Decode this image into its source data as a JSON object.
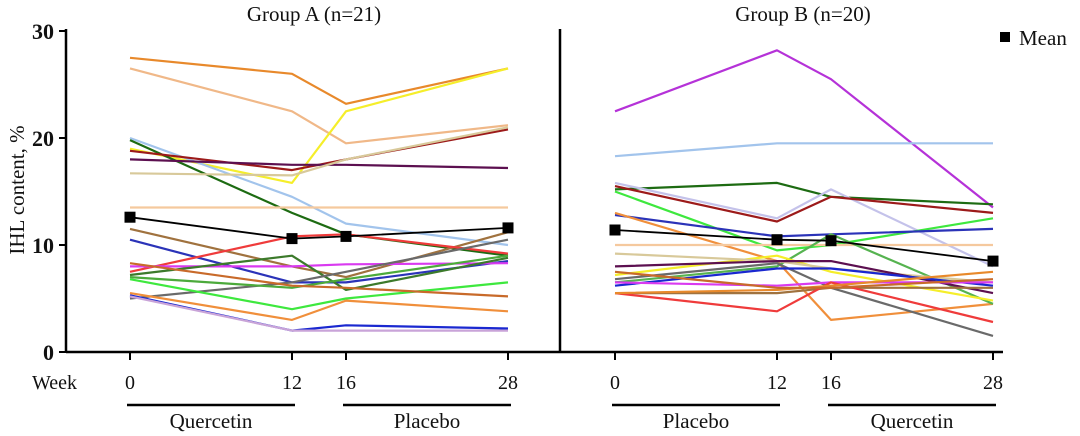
{
  "chart_data": {
    "type": "line",
    "ylabel": "IHL content,  %",
    "ylim": [
      0,
      30
    ],
    "yticks": [
      0,
      10,
      20,
      30
    ],
    "x_axis_label": "Week",
    "x": [
      0,
      12,
      16,
      28
    ],
    "xtick_labels": [
      "0",
      "12",
      "16",
      "28"
    ],
    "legend": {
      "label": "Mean",
      "position": "top-right"
    },
    "panels": [
      {
        "title": "Group A (n=21)",
        "phases": [
          {
            "label": "Quercetin",
            "from": 0,
            "to": 12
          },
          {
            "label": "Placebo",
            "from": 16,
            "to": 28
          }
        ],
        "mean": [
          12.6,
          10.6,
          10.8,
          11.6
        ],
        "series": [
          {
            "color": "#e8892b",
            "values": [
              27.5,
              26.0,
              23.2,
              26.5
            ]
          },
          {
            "color": "#f0b888",
            "values": [
              26.5,
              22.5,
              19.5,
              21.2
            ]
          },
          {
            "color": "#f5ee2a",
            "values": [
              19.0,
              15.8,
              22.5,
              26.5
            ]
          },
          {
            "color": "#a2c4ec",
            "values": [
              20.0,
              14.5,
              12.0,
              10.0
            ]
          },
          {
            "color": "#1d6b12",
            "values": [
              19.8,
              13.0,
              11.0,
              9.0
            ]
          },
          {
            "color": "#9c1a1a",
            "values": [
              18.8,
              17.0,
              18.0,
              20.8
            ]
          },
          {
            "color": "#5c1050",
            "values": [
              18.0,
              17.5,
              17.5,
              17.2
            ]
          },
          {
            "color": "#d8c99a",
            "values": [
              16.7,
              16.5,
              18.0,
              21.0
            ]
          },
          {
            "color": "#f5c99e",
            "values": [
              13.5,
              13.5,
              13.5,
              13.5
            ]
          },
          {
            "color": "#a0723e",
            "values": [
              11.5,
              8.0,
              7.0,
              11.2
            ]
          },
          {
            "color": "#2b33b8",
            "values": [
              10.5,
              6.5,
              6.5,
              8.5
            ]
          },
          {
            "color": "#ef3b3b",
            "values": [
              7.5,
              10.8,
              11.0,
              9.2
            ]
          },
          {
            "color": "#d93af0",
            "values": [
              8.0,
              8.0,
              8.2,
              8.3
            ]
          },
          {
            "color": "#3c7a2b",
            "values": [
              7.2,
              9.0,
              5.8,
              8.8
            ]
          },
          {
            "color": "#6a6a6a",
            "values": [
              5.0,
              6.5,
              7.5,
              10.5
            ]
          },
          {
            "color": "#4caa3b",
            "values": [
              7.0,
              6.0,
              6.8,
              9.0
            ]
          },
          {
            "color": "#3ee83e",
            "values": [
              6.8,
              4.0,
              5.0,
              6.5
            ]
          },
          {
            "color": "#c86a2a",
            "values": [
              8.3,
              6.2,
              6.0,
              5.2
            ]
          },
          {
            "color": "#f08f3b",
            "values": [
              5.5,
              3.0,
              4.8,
              3.8
            ]
          },
          {
            "color": "#1a28d0",
            "values": [
              5.3,
              2.0,
              2.5,
              2.2
            ]
          },
          {
            "color": "#c9a4d8",
            "values": [
              5.2,
              2.0,
              2.0,
              2.0
            ]
          }
        ]
      },
      {
        "title": "Group B (n=20)",
        "phases": [
          {
            "label": "Placebo",
            "from": 0,
            "to": 12
          },
          {
            "label": "Quercetin",
            "from": 16,
            "to": 28
          }
        ],
        "mean": [
          11.4,
          10.5,
          10.4,
          8.5
        ],
        "series": [
          {
            "color": "#b532d8",
            "values": [
              22.5,
              28.2,
              25.5,
              13.5
            ]
          },
          {
            "color": "#a2c4ec",
            "values": [
              18.3,
              19.5,
              19.5,
              19.5
            ]
          },
          {
            "color": "#1d6b12",
            "values": [
              15.2,
              15.8,
              14.5,
              13.8
            ]
          },
          {
            "color": "#c4c2ea",
            "values": [
              15.8,
              12.5,
              15.2,
              8.0
            ]
          },
          {
            "color": "#9c1a1a",
            "values": [
              15.5,
              12.2,
              14.5,
              13.0
            ]
          },
          {
            "color": "#3ee83e",
            "values": [
              15.0,
              9.5,
              10.0,
              12.5
            ]
          },
          {
            "color": "#2b33b8",
            "values": [
              12.8,
              10.8,
              11.0,
              11.5
            ]
          },
          {
            "color": "#f08f3b",
            "values": [
              13.0,
              8.5,
              3.0,
              4.5
            ]
          },
          {
            "color": "#f5c99e",
            "values": [
              10.0,
              10.0,
              10.0,
              10.0
            ]
          },
          {
            "color": "#56b350",
            "values": [
              6.5,
              8.0,
              11.0,
              4.5
            ]
          },
          {
            "color": "#f5ee2a",
            "values": [
              7.2,
              9.0,
              7.5,
              4.8
            ]
          },
          {
            "color": "#d8c99a",
            "values": [
              9.2,
              8.5,
              7.8,
              6.5
            ]
          },
          {
            "color": "#5c1050",
            "values": [
              8.0,
              8.5,
              8.5,
              5.5
            ]
          },
          {
            "color": "#6a6a6a",
            "values": [
              6.8,
              8.3,
              6.0,
              1.5
            ]
          },
          {
            "color": "#1a28d0",
            "values": [
              6.2,
              7.8,
              7.8,
              6.2
            ]
          },
          {
            "color": "#d93af0",
            "values": [
              6.5,
              6.2,
              6.5,
              6.5
            ]
          },
          {
            "color": "#a0723e",
            "values": [
              5.5,
              5.5,
              6.0,
              6.0
            ]
          },
          {
            "color": "#ef3b3b",
            "values": [
              5.5,
              3.8,
              6.5,
              2.8
            ]
          },
          {
            "color": "#e8892b",
            "values": [
              5.5,
              5.8,
              6.2,
              7.5
            ]
          },
          {
            "color": "#c86a2a",
            "values": [
              7.5,
              6.0,
              6.0,
              6.8
            ]
          }
        ]
      }
    ]
  }
}
